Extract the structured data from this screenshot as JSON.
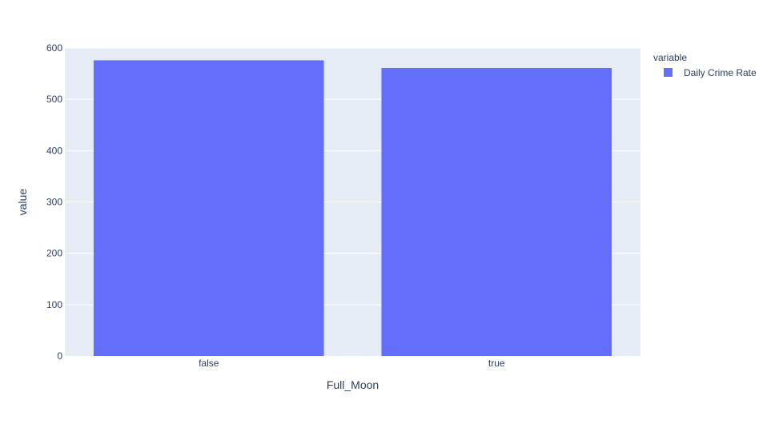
{
  "colors": {
    "plot_background": "#e5ecf6",
    "grid": "#ffffff",
    "text": "#2a3f5f",
    "series": [
      "#636efa"
    ]
  },
  "legend": {
    "title": "variable",
    "placement": "top-right"
  },
  "chart_data": {
    "type": "bar",
    "title": "",
    "xlabel": "Full_Moon",
    "ylabel": "value",
    "categories": [
      "false",
      "true"
    ],
    "series": [
      {
        "name": "Daily Crime Rate",
        "values": [
          576,
          561
        ]
      }
    ],
    "ylim": [
      0,
      600
    ],
    "yticks": [
      0,
      100,
      200,
      300,
      400,
      500,
      600
    ],
    "grid": true,
    "legend_placement": "top-right"
  }
}
